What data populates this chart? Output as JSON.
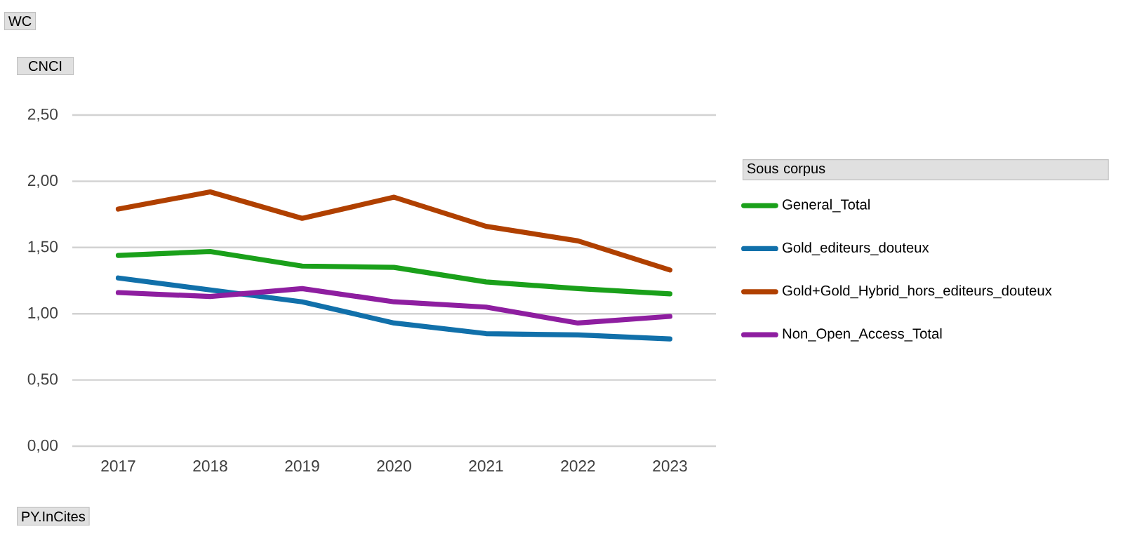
{
  "chart_data": {
    "type": "line",
    "ylabel": "CNCI",
    "xlabel": "PY.InCites",
    "legend_title": "Sous corpus",
    "annotations": [
      "WC"
    ],
    "categories": [
      "2017",
      "2018",
      "2019",
      "2020",
      "2021",
      "2022",
      "2023"
    ],
    "series": [
      {
        "name": "General_Total",
        "color": "#1aa01a",
        "values": [
          1.44,
          1.47,
          1.36,
          1.35,
          1.24,
          1.19,
          1.15
        ]
      },
      {
        "name": "Gold_editeurs_douteux",
        "color": "#1170aa",
        "values": [
          1.27,
          1.18,
          1.09,
          0.93,
          0.85,
          0.84,
          0.81
        ]
      },
      {
        "name": "Gold+Gold_Hybrid_hors_editeurs_douteux",
        "color": "#b04000",
        "values": [
          1.79,
          1.92,
          1.72,
          1.88,
          1.66,
          1.55,
          1.33
        ]
      },
      {
        "name": "Non_Open_Access_Total",
        "color": "#8e1ea0",
        "values": [
          1.16,
          1.13,
          1.19,
          1.09,
          1.05,
          0.93,
          0.98
        ]
      }
    ],
    "ylim": [
      0,
      2.5
    ],
    "yticks": [
      {
        "value": 0,
        "label": "0,00"
      },
      {
        "value": 0.5,
        "label": "0,50"
      },
      {
        "value": 1,
        "label": "1,00"
      },
      {
        "value": 1.5,
        "label": "1,50"
      },
      {
        "value": 2,
        "label": "2,00"
      },
      {
        "value": 2.5,
        "label": "2,50"
      }
    ],
    "grid": "y",
    "legend": "right",
    "marker": "none",
    "line_style": "solid"
  }
}
